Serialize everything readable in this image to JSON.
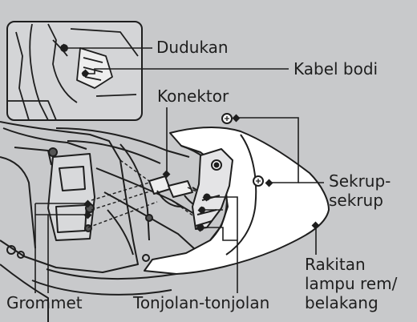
{
  "labels": {
    "dudukan": "Dudukan",
    "kabel_bodi": "Kabel bodi",
    "konektor": "Konektor",
    "sekrup_line1": "Sekrup-",
    "sekrup_line2": "sekrup",
    "rakitan_line1": "Rakitan",
    "rakitan_line2": "lampu rem/",
    "rakitan_line3": "belakang",
    "grommet": "Grommet",
    "tonjolan": "Tonjolan-tonjolan"
  },
  "colors": {
    "background": "#c8c9cb",
    "frame": "#1e1e1e",
    "lamp_shell": "#ffffff",
    "inset_fill": "#d4d5d7"
  }
}
